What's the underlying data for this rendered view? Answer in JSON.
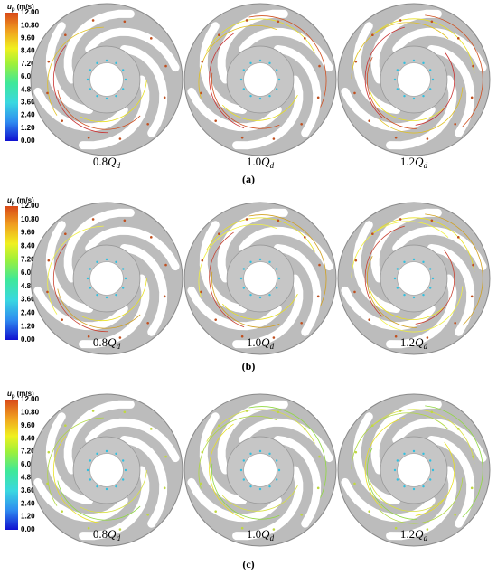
{
  "panels": [
    {
      "label": "(a)",
      "colorbar": {
        "symbol": "u",
        "subscript": "p",
        "unit": "(m/s)",
        "ticks": [
          "12.00",
          "10.80",
          "9.60",
          "8.40",
          "7.20",
          "6.00",
          "4.80",
          "3.60",
          "2.40",
          "1.20",
          "0.00"
        ]
      },
      "images": [
        {
          "number": "0.8",
          "symbol": "Q",
          "subscript": "d"
        },
        {
          "number": "1.0",
          "symbol": "Q",
          "subscript": "d"
        },
        {
          "number": "1.2",
          "symbol": "Q",
          "subscript": "d"
        }
      ]
    },
    {
      "label": "(b)",
      "colorbar": {
        "symbol": "u",
        "subscript": "p",
        "unit": "(m/s)",
        "ticks": [
          "12.00",
          "10.80",
          "9.60",
          "8.40",
          "7.20",
          "6.00",
          "4.80",
          "3.60",
          "2.40",
          "1.20",
          "0.00"
        ]
      },
      "images": [
        {
          "number": "0.8",
          "symbol": "Q",
          "subscript": "d"
        },
        {
          "number": "1.0",
          "symbol": "Q",
          "subscript": "d"
        },
        {
          "number": "1.2",
          "symbol": "Q",
          "subscript": "d"
        }
      ]
    },
    {
      "label": "(c)",
      "colorbar": {
        "symbol": "u",
        "subscript": "p",
        "unit": "(m/s)",
        "ticks": [
          "12.00",
          "10.80",
          "9.60",
          "8.40",
          "7.20",
          "6.00",
          "4.80",
          "3.60",
          "2.40",
          "1.20",
          "0.00"
        ]
      },
      "images": [
        {
          "number": "0.8",
          "symbol": "Q",
          "subscript": "d"
        },
        {
          "number": "1.0",
          "symbol": "Q",
          "subscript": "d"
        },
        {
          "number": "1.2",
          "symbol": "Q",
          "subscript": "d"
        }
      ]
    }
  ]
}
